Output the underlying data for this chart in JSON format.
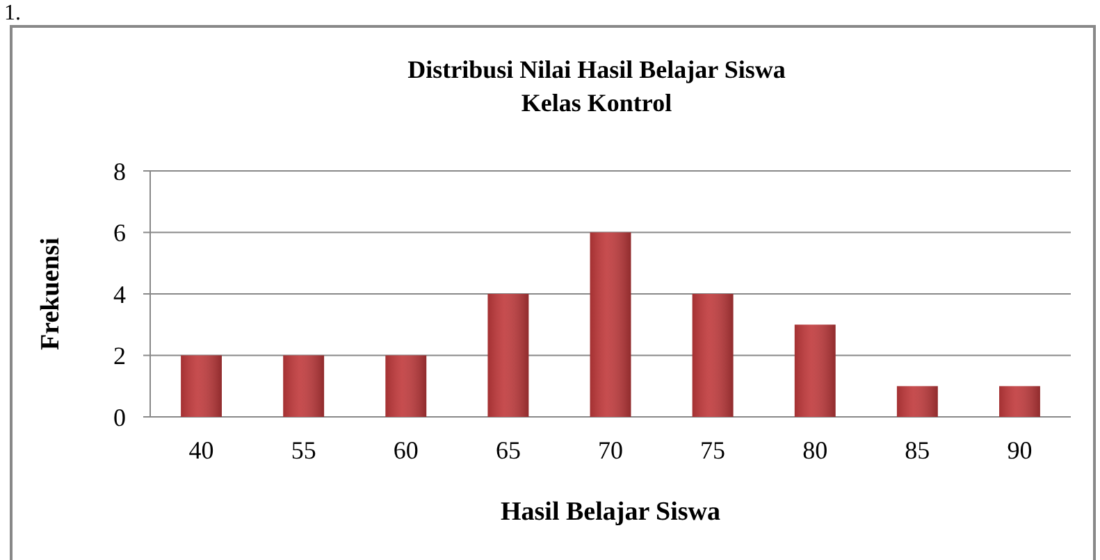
{
  "chart_data": {
    "type": "bar",
    "title": "Distribusi Nilai Hasil Belajar Siswa\nKelas Kontrol",
    "xlabel": "Hasil Belajar Siswa",
    "ylabel": "Frekuensi",
    "categories": [
      "40",
      "55",
      "60",
      "65",
      "70",
      "75",
      "80",
      "85",
      "90"
    ],
    "values": [
      2,
      2,
      2,
      4,
      6,
      4,
      3,
      1,
      1
    ],
    "color": "#c0393b",
    "ylim": [
      0,
      8
    ],
    "yticks": [
      0,
      2,
      4,
      6,
      8
    ],
    "grid": "y",
    "annotations": [
      "1."
    ]
  }
}
